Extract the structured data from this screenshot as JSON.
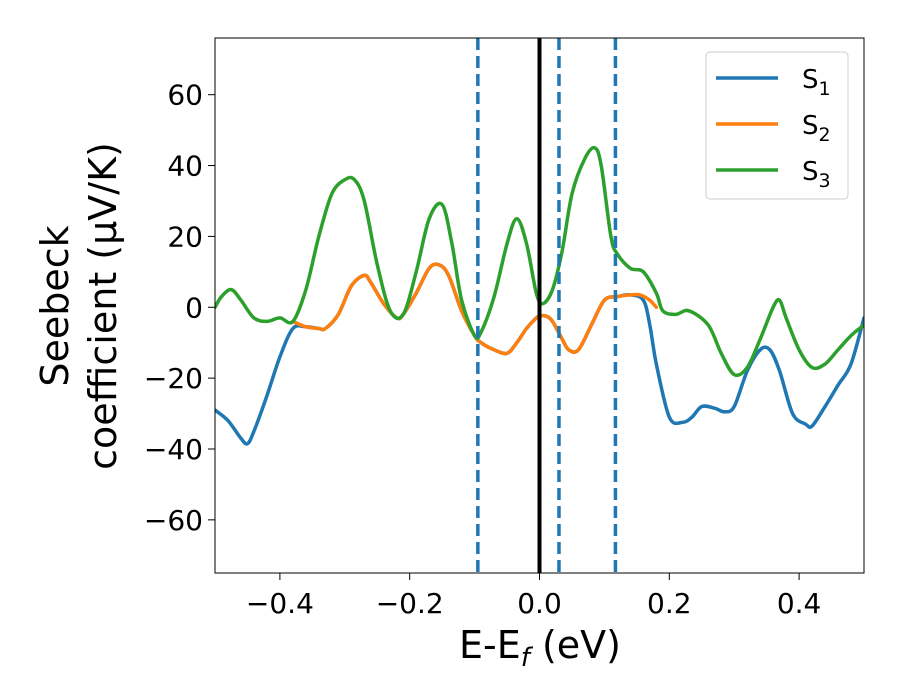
{
  "chart_data": {
    "type": "line",
    "xlabel_main": "E-E",
    "xlabel_sub": "f",
    "xlabel_unit": " (eV)",
    "ylabel_line1": "Seebeck",
    "ylabel_line2": "coefficient  (μV/K)",
    "xlim": [
      -0.5,
      0.5
    ],
    "ylim": [
      -75,
      76
    ],
    "xticks": [
      -0.4,
      -0.2,
      0.0,
      0.2,
      0.4
    ],
    "xtick_labels": [
      "−0.4",
      "−0.2",
      "0.0",
      "0.2",
      "0.4"
    ],
    "yticks": [
      -60,
      -40,
      -20,
      0,
      20,
      40,
      60
    ],
    "ytick_labels": [
      "−60",
      "−40",
      "−20",
      "0",
      "20",
      "40",
      "60"
    ],
    "grid": false,
    "legend_position": "top-right",
    "reference_lines": [
      {
        "x": 0.0,
        "style": "solid",
        "color": "#000000"
      },
      {
        "x": -0.095,
        "style": "dashed",
        "color": "#1f77b4"
      },
      {
        "x": 0.03,
        "style": "dashed",
        "color": "#1f77b4"
      },
      {
        "x": 0.117,
        "style": "dashed",
        "color": "#1f77b4"
      }
    ],
    "series": [
      {
        "name": "S",
        "subscript": "1",
        "color": "#1f77b4",
        "x": [
          -0.5,
          -0.48,
          -0.46,
          -0.45,
          -0.44,
          -0.42,
          -0.4,
          -0.38,
          -0.36,
          -0.34,
          -0.33,
          -0.31,
          -0.29,
          -0.27,
          -0.26,
          -0.24,
          -0.22,
          -0.21,
          -0.19,
          -0.17,
          -0.155,
          -0.14,
          -0.12,
          -0.1,
          -0.09,
          -0.07,
          -0.05,
          -0.035,
          -0.02,
          -0.005,
          0.0,
          0.01,
          0.02,
          0.035,
          0.045,
          0.06,
          0.08,
          0.1,
          0.12,
          0.14,
          0.16,
          0.17,
          0.18,
          0.2,
          0.22,
          0.235,
          0.25,
          0.27,
          0.285,
          0.3,
          0.32,
          0.34,
          0.355,
          0.37,
          0.39,
          0.41,
          0.42,
          0.44,
          0.46,
          0.48,
          0.5
        ],
        "y": [
          -29,
          -32,
          -37,
          -38.5,
          -35,
          -25,
          -14,
          -6,
          -5.5,
          -6,
          -6,
          -2,
          6,
          9,
          7,
          1,
          -3,
          -2,
          4,
          11,
          12,
          9,
          -1,
          -8,
          -10,
          -12,
          -13,
          -10,
          -6,
          -3,
          -2.5,
          -2.5,
          -4,
          -9,
          -12,
          -12,
          -5,
          2,
          3,
          3.5,
          2,
          -5,
          -16,
          -31,
          -32.5,
          -31,
          -28,
          -28.5,
          -29.5,
          -28,
          -18,
          -12,
          -12,
          -18,
          -30,
          -33,
          -33.5,
          -28,
          -22,
          -16,
          -3
        ]
      },
      {
        "name": "S",
        "subscript": "2",
        "color": "#ff7f0e",
        "x": [
          -0.38,
          -0.36,
          -0.34,
          -0.33,
          -0.31,
          -0.29,
          -0.27,
          -0.26,
          -0.24,
          -0.22,
          -0.21,
          -0.19,
          -0.17,
          -0.155,
          -0.14,
          -0.12,
          -0.1,
          -0.09,
          -0.07,
          -0.05,
          -0.035,
          -0.02,
          -0.005,
          0.0,
          0.01,
          0.02,
          0.035,
          0.045,
          0.06,
          0.08,
          0.1,
          0.12,
          0.14,
          0.155,
          0.17,
          0.18
        ],
        "y": [
          -4,
          -5.5,
          -6,
          -6,
          -2,
          6,
          9,
          7,
          1,
          -3,
          -2,
          4,
          11,
          12,
          9,
          -1,
          -8,
          -10,
          -12,
          -13,
          -10,
          -6,
          -3,
          -2.5,
          -2.5,
          -4,
          -9,
          -12,
          -12,
          -5,
          2,
          3,
          3.5,
          3.5,
          2,
          0
        ]
      },
      {
        "name": "S",
        "subscript": "3",
        "color": "#2ca02c",
        "x": [
          -0.5,
          -0.49,
          -0.475,
          -0.46,
          -0.44,
          -0.42,
          -0.4,
          -0.38,
          -0.36,
          -0.34,
          -0.32,
          -0.3,
          -0.285,
          -0.27,
          -0.25,
          -0.23,
          -0.21,
          -0.19,
          -0.17,
          -0.15,
          -0.135,
          -0.12,
          -0.1,
          -0.09,
          -0.07,
          -0.05,
          -0.035,
          -0.02,
          -0.005,
          0.005,
          0.02,
          0.035,
          0.05,
          0.07,
          0.085,
          0.095,
          0.11,
          0.12,
          0.14,
          0.16,
          0.18,
          0.19,
          0.21,
          0.23,
          0.26,
          0.28,
          0.3,
          0.32,
          0.34,
          0.36,
          0.37,
          0.38,
          0.4,
          0.42,
          0.44,
          0.46,
          0.48,
          0.5
        ],
        "y": [
          0,
          3,
          5,
          2,
          -3,
          -4,
          -3,
          -4,
          5,
          20,
          32,
          36,
          36,
          30,
          12,
          -1,
          -2,
          10,
          25,
          29,
          18,
          2,
          -8,
          -7,
          3,
          18,
          25,
          18,
          4,
          1,
          5,
          16,
          32,
          42,
          45,
          40,
          20,
          15,
          11,
          10,
          4,
          -1,
          -2,
          -1,
          -5,
          -13,
          -19,
          -17,
          -9,
          0,
          2,
          -3,
          -12,
          -17,
          -16,
          -12,
          -8,
          -5
        ]
      }
    ]
  }
}
